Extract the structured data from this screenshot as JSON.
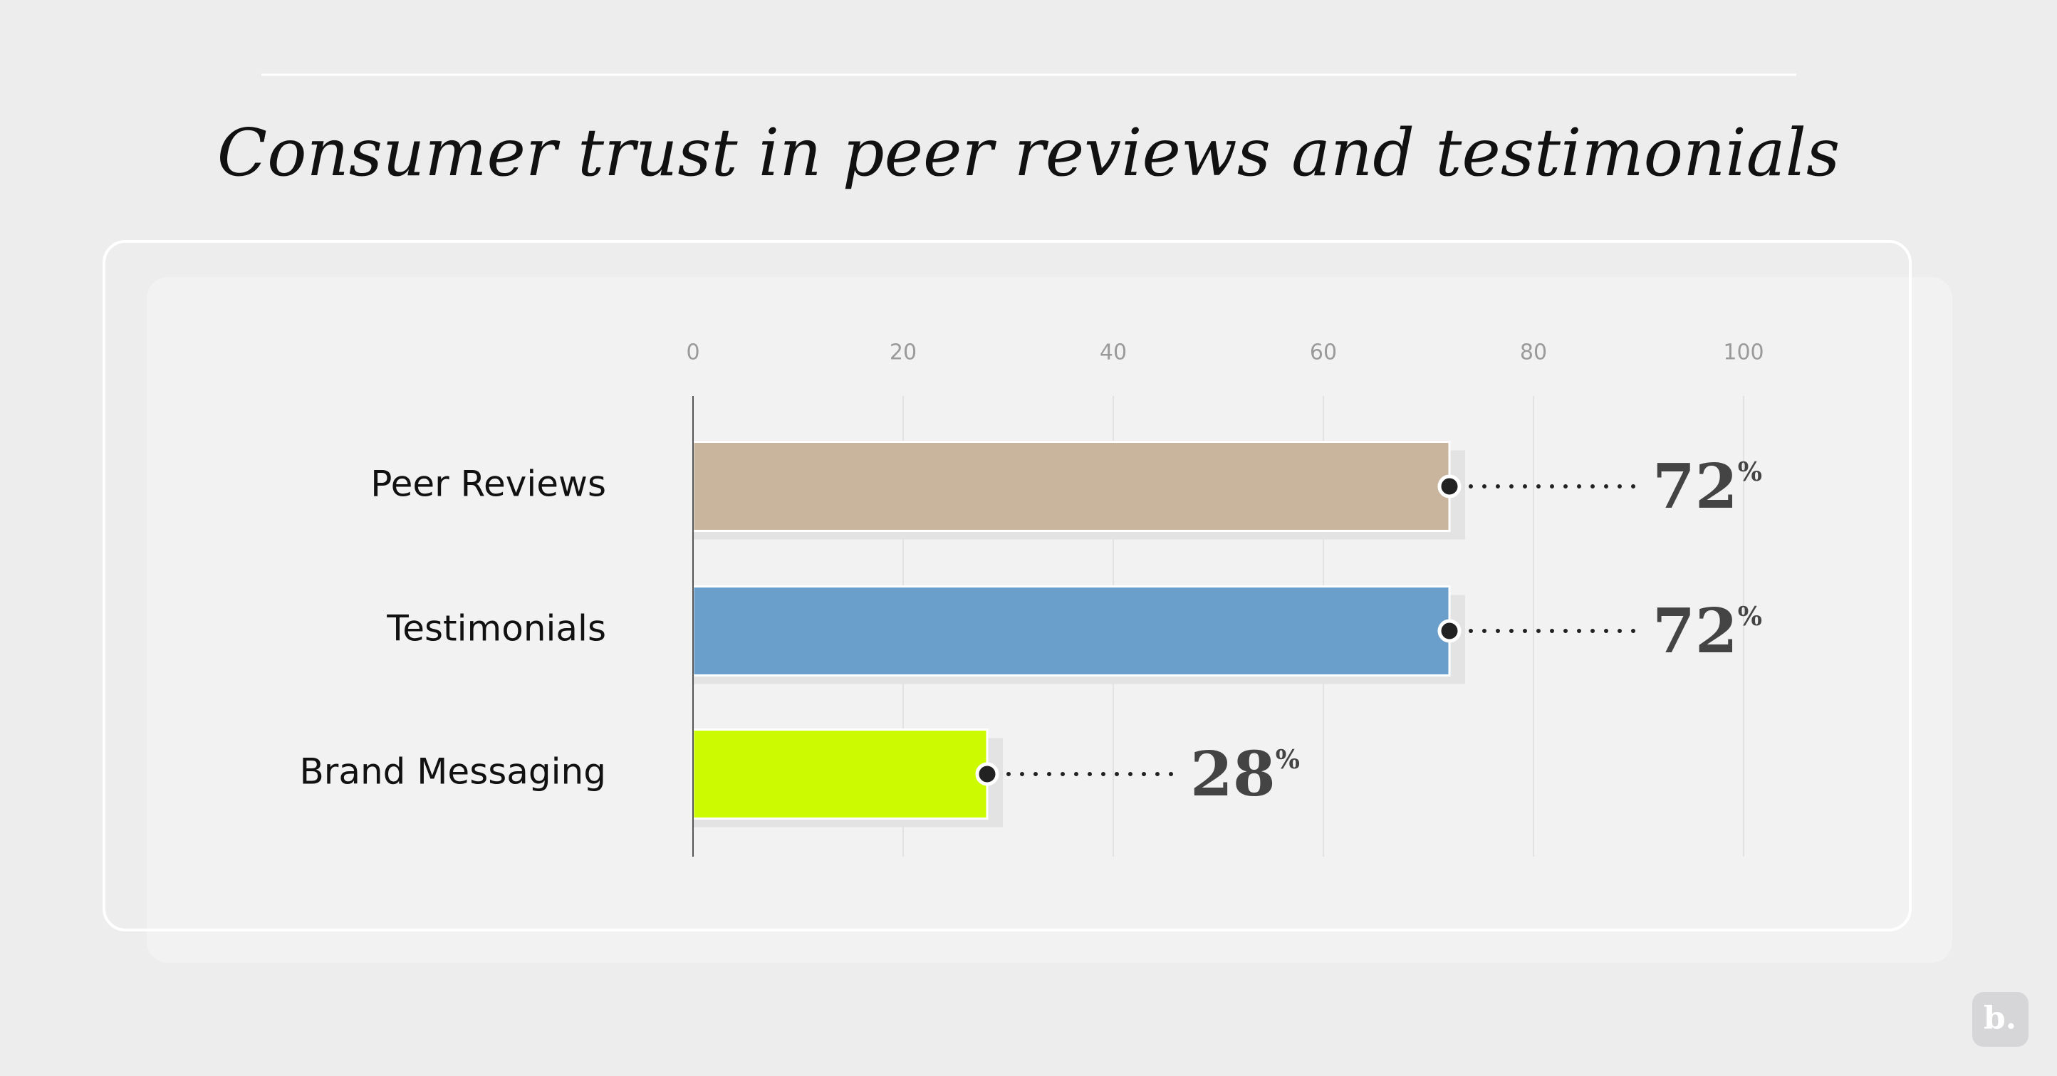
{
  "chart_data": {
    "type": "bar",
    "orientation": "horizontal",
    "title": "Consumer trust in peer reviews and testimonials",
    "categories": [
      "Peer Reviews",
      "Testimonials",
      "Brand Messaging"
    ],
    "values": [
      72,
      72,
      28
    ],
    "value_labels": [
      "72%",
      "72%",
      "28%"
    ],
    "colors": [
      "#c9b49e",
      "#6a9ecb",
      "#ccfa00"
    ],
    "xlim": [
      0,
      100
    ],
    "xticks": [
      0,
      20,
      40,
      60,
      80,
      100
    ],
    "grid": true
  },
  "logo": "b."
}
